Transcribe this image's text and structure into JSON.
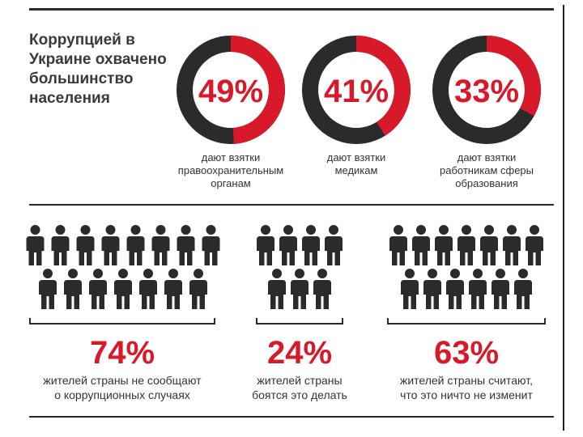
{
  "title": "Коррупцией в Украине охвачено большинство населения",
  "colors": {
    "red": "#d7192a",
    "dark": "#2b2b2b"
  },
  "donuts": [
    {
      "percent": 49,
      "label": "49%",
      "caption_lines": [
        "дают взятки",
        "правоохранительным",
        "органам"
      ]
    },
    {
      "percent": 41,
      "label": "41%",
      "caption_lines": [
        "дают взятки",
        "медикам"
      ]
    },
    {
      "percent": 33,
      "label": "33%",
      "caption_lines": [
        "дают взятки",
        "работникам сферы",
        "образования"
      ]
    }
  ],
  "people_groups": [
    {
      "icon": "person-icon",
      "label": "74%",
      "desc_lines": [
        "жителей страны не сообщают",
        "о коррупционных случаях"
      ]
    },
    {
      "icon": "person-icon",
      "label": "24%",
      "desc_lines": [
        "жителей страны",
        "боятся это делать"
      ]
    },
    {
      "icon": "person-icon",
      "label": "63%",
      "desc_lines": [
        "жителей страны считают,",
        "что это ничто не изменит"
      ]
    }
  ]
}
